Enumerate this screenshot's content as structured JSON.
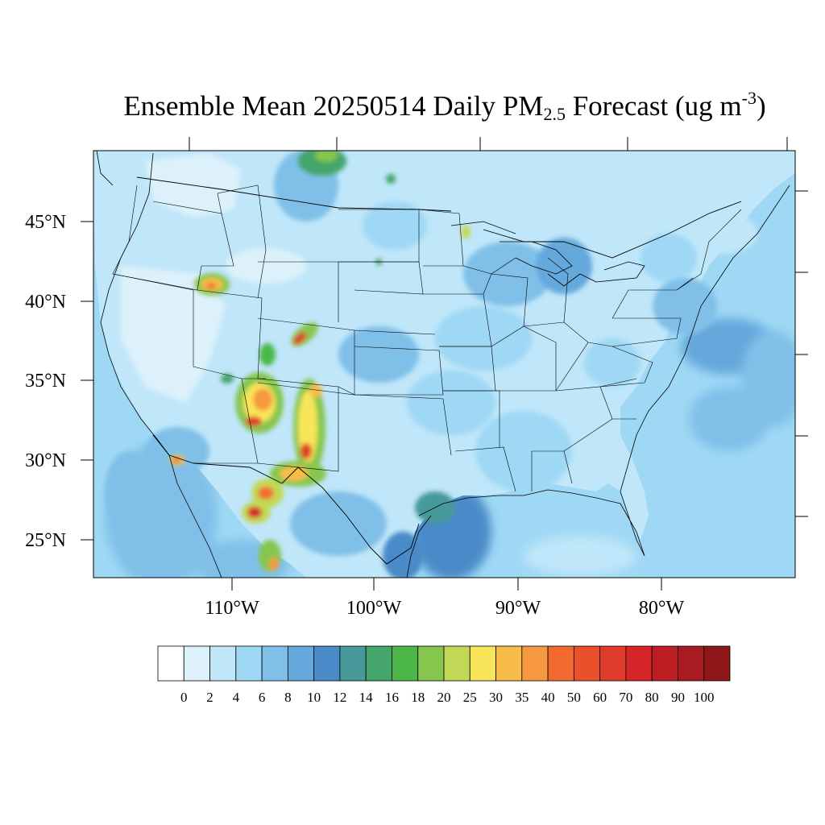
{
  "title": {
    "prefix": "Ensemble Mean 20250514 Daily PM",
    "subscript": "2.5",
    "middle": " Forecast (ug m",
    "superscript": "-3",
    "suffix": ")"
  },
  "map": {
    "lat_labels": [
      "45°N",
      "40°N",
      "35°N",
      "30°N",
      "25°N"
    ],
    "lon_labels": [
      "110°W",
      "100°W",
      "90°W",
      "80°W"
    ],
    "lat_values": [
      45,
      40,
      35,
      30,
      25
    ],
    "lon_values": [
      -110,
      -100,
      -90,
      -80
    ]
  },
  "colorbar": {
    "levels": [
      "0",
      "2",
      "4",
      "6",
      "8",
      "10",
      "12",
      "14",
      "16",
      "18",
      "20",
      "25",
      "30",
      "35",
      "40",
      "50",
      "60",
      "70",
      "80",
      "90",
      "100"
    ],
    "colors": [
      "#ffffff",
      "#ddf1fb",
      "#bfe6f9",
      "#9fd8f5",
      "#80c0e8",
      "#65a8dc",
      "#4a8ac8",
      "#47999a",
      "#45a56b",
      "#4cb748",
      "#86c64f",
      "#c2d957",
      "#f9e55a",
      "#f8bd49",
      "#f6983f",
      "#f26a30",
      "#e9512d",
      "#df3b2a",
      "#d62529",
      "#bd1e24",
      "#a91b20",
      "#8e1719"
    ]
  },
  "colors": {
    "ocean": "#9fd8f5",
    "land_low": "#ddf1fb",
    "land_mid": "#bfe6f9",
    "border": "#000000"
  }
}
